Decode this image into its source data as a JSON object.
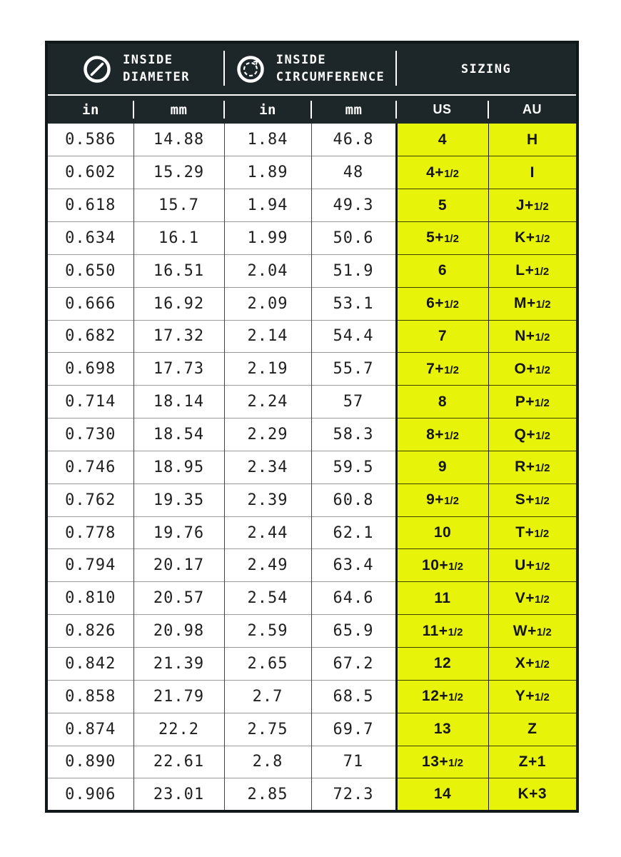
{
  "chart_data": {
    "type": "table",
    "header_groups": [
      {
        "icon": "diameter-icon",
        "lines": [
          "INSIDE",
          "DIAMETER"
        ]
      },
      {
        "icon": "circumference-icon",
        "lines": [
          "INSIDE",
          "CIRCUMFERENCE"
        ]
      },
      {
        "icon": null,
        "lines": [
          "SIZING"
        ]
      }
    ],
    "columns": [
      "in",
      "mm",
      "in",
      "mm",
      "US",
      "AU"
    ],
    "rows": [
      [
        "0.586",
        "14.88",
        "1.84",
        "46.8",
        "4",
        "H"
      ],
      [
        "0.602",
        "15.29",
        "1.89",
        "48",
        "4+1/2",
        "I"
      ],
      [
        "0.618",
        "15.7",
        "1.94",
        "49.3",
        "5",
        "J+1/2"
      ],
      [
        "0.634",
        "16.1",
        "1.99",
        "50.6",
        "5+1/2",
        "K+1/2"
      ],
      [
        "0.650",
        "16.51",
        "2.04",
        "51.9",
        "6",
        "L+1/2"
      ],
      [
        "0.666",
        "16.92",
        "2.09",
        "53.1",
        "6+1/2",
        "M+1/2"
      ],
      [
        "0.682",
        "17.32",
        "2.14",
        "54.4",
        "7",
        "N+1/2"
      ],
      [
        "0.698",
        "17.73",
        "2.19",
        "55.7",
        "7+1/2",
        "O+1/2"
      ],
      [
        "0.714",
        "18.14",
        "2.24",
        "57",
        "8",
        "P+1/2"
      ],
      [
        "0.730",
        "18.54",
        "2.29",
        "58.3",
        "8+1/2",
        "Q+1/2"
      ],
      [
        "0.746",
        "18.95",
        "2.34",
        "59.5",
        "9",
        "R+1/2"
      ],
      [
        "0.762",
        "19.35",
        "2.39",
        "60.8",
        "9+1/2",
        "S+1/2"
      ],
      [
        "0.778",
        "19.76",
        "2.44",
        "62.1",
        "10",
        "T+1/2"
      ],
      [
        "0.794",
        "20.17",
        "2.49",
        "63.4",
        "10+1/2",
        "U+1/2"
      ],
      [
        "0.810",
        "20.57",
        "2.54",
        "64.6",
        "11",
        "V+1/2"
      ],
      [
        "0.826",
        "20.98",
        "2.59",
        "65.9",
        "11+1/2",
        "W+1/2"
      ],
      [
        "0.842",
        "21.39",
        "2.65",
        "67.2",
        "12",
        "X+1/2"
      ],
      [
        "0.858",
        "21.79",
        "2.7",
        "68.5",
        "12+1/2",
        "Y+1/2"
      ],
      [
        "0.874",
        "22.2",
        "2.75",
        "69.7",
        "13",
        "Z"
      ],
      [
        "0.890",
        "22.61",
        "2.8",
        "71",
        "13+1/2",
        "Z+1"
      ],
      [
        "0.906",
        "23.01",
        "2.85",
        "72.3",
        "14",
        "K+3"
      ]
    ]
  },
  "colors": {
    "header_bg": "#1d2729",
    "header_text": "#ffffff",
    "accent_yellow": "#e8f30a",
    "outer_border": "#10181a",
    "number_text": "#202020"
  }
}
